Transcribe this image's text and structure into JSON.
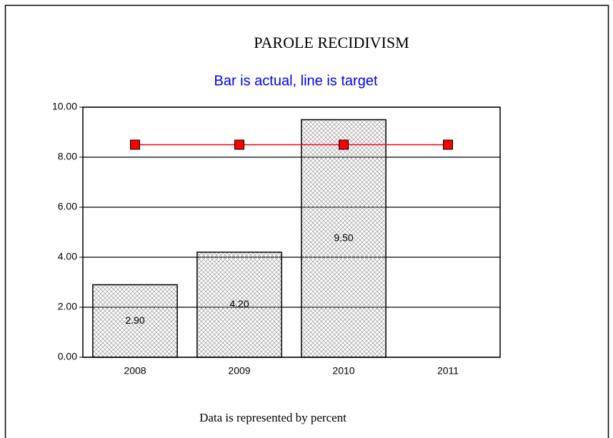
{
  "chart_data": {
    "type": "bar-line",
    "title": "PAROLE RECIDIVISM",
    "subtitle": "Bar is actual, line is target",
    "footer": "Data is represented by percent",
    "categories": [
      "2008",
      "2009",
      "2010",
      "2011"
    ],
    "bars": {
      "values": [
        2.9,
        4.2,
        9.5,
        null
      ],
      "value_labels": [
        "2.90",
        "4.20",
        "9.50",
        null
      ],
      "color": "#999999"
    },
    "line": {
      "values": [
        8.5,
        8.5,
        8.5,
        8.5
      ],
      "color": "#ff0000"
    },
    "ylim": [
      0,
      10
    ],
    "yticks": [
      {
        "value": 0,
        "label": "0.00"
      },
      {
        "value": 2,
        "label": "2.00"
      },
      {
        "value": 4,
        "label": "4.00"
      },
      {
        "value": 6,
        "label": "6.00"
      },
      {
        "value": 8,
        "label": "8.00"
      },
      {
        "value": 10,
        "label": "10.00"
      }
    ],
    "grid": true
  }
}
